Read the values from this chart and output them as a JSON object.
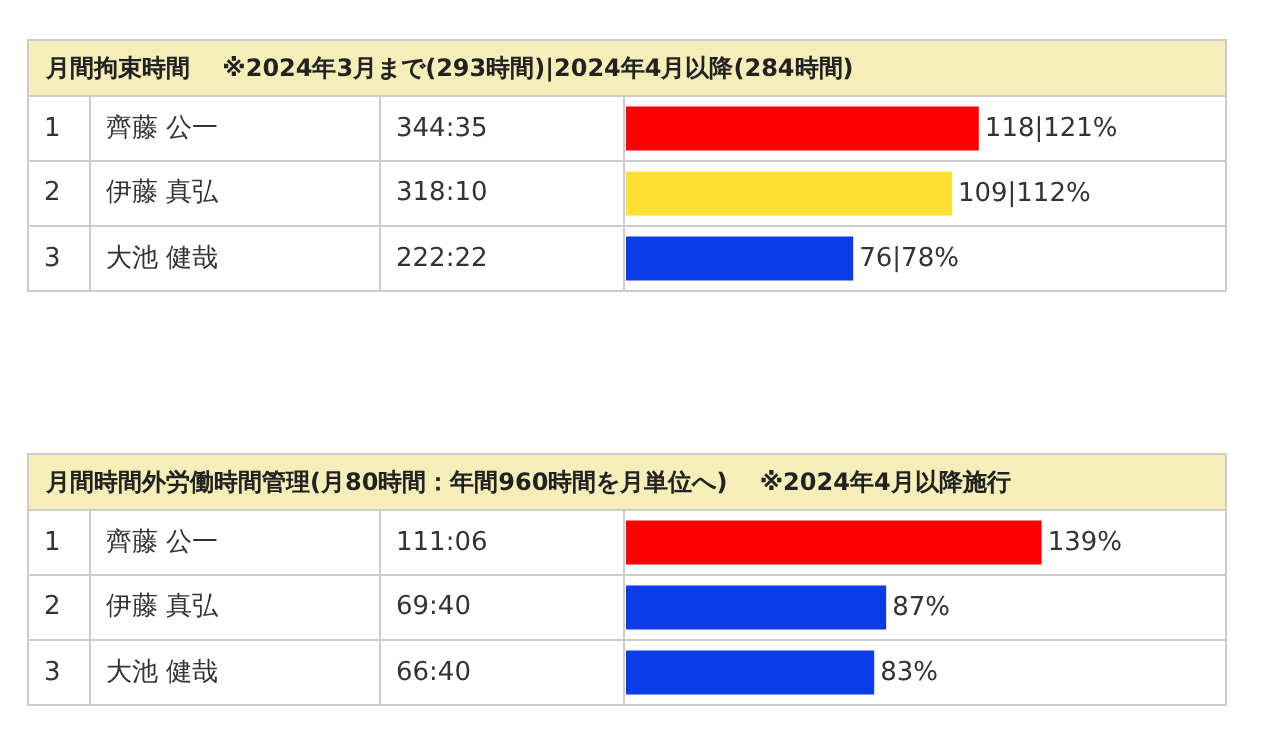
{
  "chart_data": [
    {
      "type": "bar",
      "orientation": "horizontal",
      "title": "月間拘束時間　 ※2024年3月まで(293時間)|2024年4月以降(284時間)",
      "categories": [
        "齊藤 公一",
        "伊藤 真弘",
        "大池 健哉"
      ],
      "values": [
        118,
        109,
        76
      ],
      "colors": [
        "#ff0000",
        "#ffe033",
        "#0a3de8"
      ],
      "value_labels": [
        "118|121%",
        "109|112%",
        "76|78%"
      ],
      "annotations": [
        "1",
        "344:35",
        "2",
        "318:10",
        "3",
        "222:22"
      ],
      "tick_labels": false,
      "grid": false,
      "legend": false
    },
    {
      "type": "bar",
      "orientation": "horizontal",
      "title": "月間時間外労働時間管理(月80時間：年間960時間を月単位へ)　 ※2024年4月以降施行",
      "categories": [
        "齊藤 公一",
        "伊藤 真弘",
        "大池 健哉"
      ],
      "values": [
        139,
        87,
        83
      ],
      "colors": [
        "#ff0000",
        "#0a3de8",
        "#0a3de8"
      ],
      "value_labels": [
        "139%",
        "87%",
        "83%"
      ],
      "annotations": [
        "1",
        "111:06",
        "2",
        "69:40",
        "3",
        "66:40"
      ],
      "tick_labels": false,
      "grid": false,
      "legend": false
    }
  ]
}
